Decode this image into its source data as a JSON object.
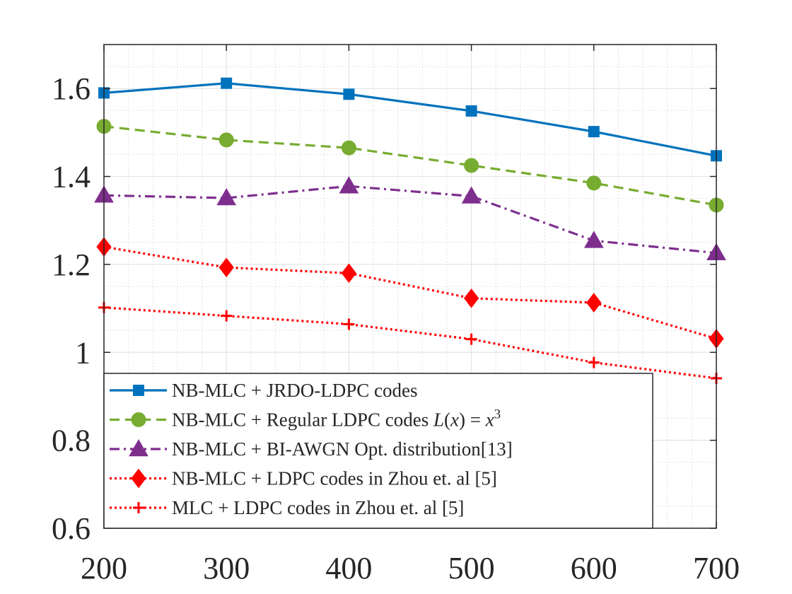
{
  "chart_data": {
    "type": "line",
    "title": "",
    "xlabel": "",
    "ylabel": "",
    "x": [
      200,
      300,
      400,
      500,
      600,
      700
    ],
    "xlim": [
      200,
      700
    ],
    "ylim": [
      0.6,
      1.7
    ],
    "xticks": [
      200,
      300,
      400,
      500,
      600,
      700
    ],
    "yticks": [
      0.6,
      0.8,
      1.0,
      1.2,
      1.4,
      1.6
    ],
    "x_tick_labels": [
      "200",
      "300",
      "400",
      "500",
      "600",
      "700"
    ],
    "y_tick_labels": [
      "0.6",
      "0.8",
      "1",
      "1.2",
      "1.4",
      "1.6"
    ],
    "grid": true,
    "minor_grid": true,
    "legend_position": "bottom-left",
    "series": [
      {
        "name": "NB-MLC + JRDO-LDPC codes",
        "legend_parts": [
          "NB-MLC + JRDO-LDPC codes"
        ],
        "values": [
          1.59,
          1.612,
          1.587,
          1.549,
          1.502,
          1.447
        ],
        "color": "#0072BD",
        "line_style": "solid",
        "marker": "square"
      },
      {
        "name": "NB-MLC + Regular LDPC codes L(x) = x^3",
        "legend_parts": [
          "NB-MLC + Regular LDPC codes ",
          "L",
          "(",
          "x",
          ") = ",
          "x",
          "3"
        ],
        "values": [
          1.514,
          1.483,
          1.465,
          1.425,
          1.385,
          1.335
        ],
        "color": "#77AC30",
        "line_style": "dashed",
        "marker": "circle"
      },
      {
        "name": "NB-MLC + BI-AWGN Opt. distribution[13]",
        "legend_parts": [
          "NB-MLC + BI-AWGN Opt. distribution[13]"
        ],
        "values": [
          1.357,
          1.351,
          1.378,
          1.355,
          1.254,
          1.226
        ],
        "color": "#7E2F8E",
        "line_style": "dashdot",
        "marker": "triangle"
      },
      {
        "name": "NB-MLC + LDPC codes in Zhou et. al [5]",
        "legend_parts": [
          "NB-MLC + LDPC codes in Zhou et. al [5]"
        ],
        "values": [
          1.24,
          1.193,
          1.18,
          1.123,
          1.113,
          1.031
        ],
        "color": "#FF0000",
        "line_style": "dotted",
        "marker": "diamond"
      },
      {
        "name": "MLC + LDPC codes in Zhou et. al [5]",
        "legend_parts": [
          "MLC + LDPC codes in Zhou et. al [5]"
        ],
        "values": [
          1.102,
          1.083,
          1.064,
          1.03,
          0.977,
          0.941
        ],
        "color": "#FF0000",
        "line_style": "dotted",
        "marker": "plus"
      }
    ]
  }
}
